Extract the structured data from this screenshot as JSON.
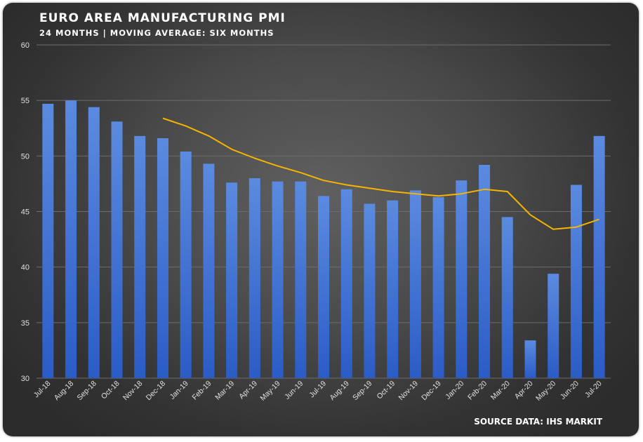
{
  "chart_data": {
    "type": "bar",
    "title": "EURO AREA MANUFACTURING PMI",
    "subtitle": "24 MONTHS | MOVING AVERAGE: SIX MONTHS",
    "source": "SOURCE DATA: IHS MARKIT",
    "categories": [
      "Jul-18",
      "Aug-18",
      "Sep-18",
      "Oct-18",
      "Nov-18",
      "Dec-18",
      "Jan-19",
      "Feb-19",
      "Mar-19",
      "Apr-19",
      "May-19",
      "Jun-19",
      "Jul-19",
      "Aug-19",
      "Sep-19",
      "Oct-19",
      "Nov-19",
      "Dec-19",
      "Jan-20",
      "Feb-20",
      "Mar-20",
      "Apr-20",
      "May-20",
      "Jun-20",
      "Jul-20"
    ],
    "series": [
      {
        "type": "bar",
        "values": [
          54.7,
          55.0,
          54.4,
          53.1,
          51.8,
          51.6,
          50.4,
          49.3,
          47.6,
          48.0,
          47.7,
          47.7,
          46.4,
          47.0,
          45.7,
          46.0,
          46.9,
          46.3,
          47.8,
          49.2,
          44.5,
          33.4,
          39.4,
          47.4,
          51.8
        ]
      },
      {
        "type": "line",
        "values": [
          null,
          null,
          null,
          null,
          null,
          53.4,
          52.7,
          51.8,
          50.6,
          49.8,
          49.1,
          48.5,
          47.8,
          47.4,
          47.1,
          46.8,
          46.6,
          46.4,
          46.6,
          47.0,
          46.8,
          44.7,
          43.4,
          43.6,
          44.3
        ]
      }
    ],
    "ylim": [
      30,
      60
    ],
    "yticks": [
      30,
      35,
      40,
      45,
      50,
      55,
      60
    ],
    "grid": true,
    "colors": {
      "bar_top": "#5b8be0",
      "bar_bottom": "#2b5cc6",
      "line": "#f5b400",
      "grid": "#6c6c6c",
      "text": "#ffffff"
    }
  }
}
